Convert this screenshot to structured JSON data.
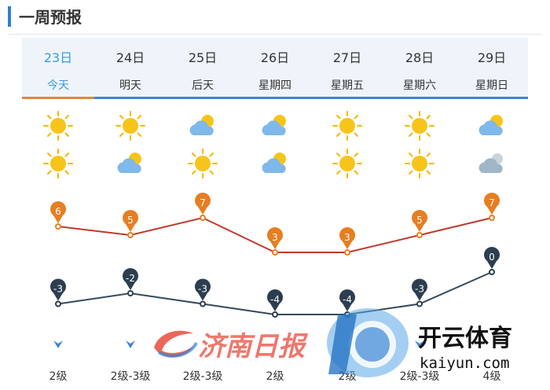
{
  "page": {
    "title": "一周预报"
  },
  "days": [
    {
      "date": "23日",
      "name": "今天",
      "today": true,
      "day_icon": "sun-icon",
      "night_icon": "sun-icon",
      "high": 6,
      "low": -3,
      "wind_dir": "north",
      "wind": "2级"
    },
    {
      "date": "24日",
      "name": "明天",
      "today": false,
      "day_icon": "sun-icon",
      "night_icon": "cloudy-sun-icon",
      "high": 5,
      "low": -2,
      "wind_dir": "north",
      "wind": "2级-3级"
    },
    {
      "date": "25日",
      "name": "后天",
      "today": false,
      "day_icon": "cloudy-sun-icon",
      "night_icon": "sun-icon",
      "high": 7,
      "low": -3,
      "wind_dir": "",
      "wind": "2级-3级"
    },
    {
      "date": "26日",
      "name": "星期四",
      "today": false,
      "day_icon": "cloudy-sun-icon",
      "night_icon": "cloudy-sun-icon",
      "high": 3,
      "low": -4,
      "wind_dir": "",
      "wind": "2级"
    },
    {
      "date": "27日",
      "name": "星期五",
      "today": false,
      "day_icon": "sun-icon",
      "night_icon": "sun-icon",
      "high": 3,
      "low": -4,
      "wind_dir": "",
      "wind": "2级"
    },
    {
      "date": "28日",
      "name": "星期六",
      "today": false,
      "day_icon": "sun-icon",
      "night_icon": "sun-icon",
      "high": 5,
      "low": -3,
      "wind_dir": "north",
      "wind": "2级-3级"
    },
    {
      "date": "29日",
      "name": "星期日",
      "today": false,
      "day_icon": "cloudy-sun-icon",
      "night_icon": "cloudy-icon",
      "high": 7,
      "low": 0,
      "wind_dir": "",
      "wind": "4级"
    }
  ],
  "colors": {
    "high_line": "#c0392b",
    "high_marker": "#e67e22",
    "low_line": "#34495e",
    "low_marker": "#2c3e50",
    "accent": "#3d84d8",
    "today": "#e6863b"
  },
  "watermarks": {
    "left_brand": "济南日报",
    "right_brand": "开云体育",
    "right_url": "kaiyun.com"
  }
}
